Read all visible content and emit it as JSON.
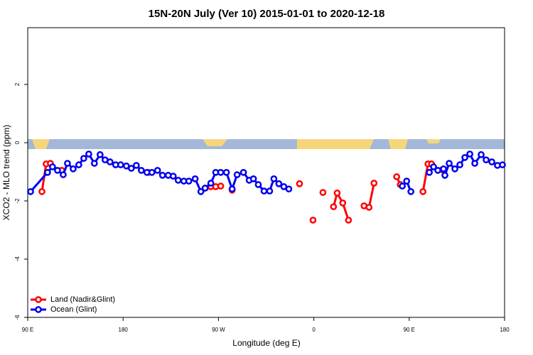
{
  "chart_data": {
    "type": "line",
    "title": "15N-20N July (Ver 10)   2015-01-01 to 2020-12-18",
    "x_label": "Longitude (deg E)",
    "y_label": "XCO2 - MLO trend (ppm)",
    "xlim": [
      90,
      540
    ],
    "ylim": [
      -6,
      3.95
    ],
    "xticks": [
      {
        "value": 90,
        "label": "90 E"
      },
      180,
      {
        "value": 270,
        "label": "90 W"
      },
      {
        "value": 360,
        "label": "0"
      },
      {
        "value": 450,
        "label": "90 E"
      },
      {
        "value": 540,
        "label": "180"
      }
    ],
    "yticks": [
      -6,
      -4,
      -2,
      0,
      2
    ],
    "legend": "bottom-left",
    "series": [
      {
        "name": "Land (Nadir&Glint)",
        "color": "#ff0000",
        "x": [
          103.4,
          107.4,
          111.4,
          null,
          122.1,
          null,
          203.8,
          null,
          257.4,
          262.8,
          267.4,
          272.1,
          null,
          282.9,
          null,
          346.5,
          null,
          359.2,
          null,
          368.6,
          null,
          378.6,
          382.0,
          387.3,
          392.7,
          null,
          407.4,
          412.1,
          416.8,
          null,
          438.2,
          441.6,
          null,
          463.0,
          467.7,
          471.1,
          null,
          481.1
        ],
        "values": [
          -1.68,
          -0.73,
          -0.71,
          null,
          -0.95,
          null,
          -1.02,
          null,
          -1.56,
          -1.51,
          -1.51,
          -1.49,
          null,
          -1.63,
          null,
          -1.41,
          null,
          -2.66,
          null,
          -1.71,
          null,
          -2.2,
          -1.73,
          -2.07,
          -2.66,
          null,
          -2.17,
          -2.22,
          -1.39,
          null,
          -1.17,
          -1.44,
          null,
          -1.68,
          -0.73,
          -0.73,
          null,
          -0.93
        ]
      },
      {
        "name": "Ocean (Glint)",
        "color": "#0000ee",
        "x": [
          92.7,
          108.7,
          113.4,
          118.1,
          123.5,
          127.5,
          132.9,
          138.2,
          142.9,
          147.6,
          152.9,
          158.3,
          163.0,
          167.7,
          173.0,
          177.7,
          183.1,
          187.8,
          192.5,
          197.2,
          202.5,
          207.2,
          212.5,
          217.2,
          222.6,
          227.3,
          232.0,
          237.3,
          242.0,
          248.0,
          253.4,
          257.4,
          262.8,
          267.4,
          272.1,
          277.5,
          282.9,
          287.6,
          293.6,
          299.0,
          303.0,
          307.6,
          313.0,
          318.3,
          322.3,
          327.0,
          331.7,
          336.4,
          null,
          443.5,
          447.6,
          451.6,
          null,
          469.0,
          473.0,
          477.0,
          482.4,
          483.7,
          487.7,
          493.1,
          497.8,
          502.5,
          507.2,
          511.9,
          517.9,
          522.6,
          528.0,
          533.3,
          538.0
        ],
        "values": [
          -1.68,
          -1.02,
          -0.83,
          -0.95,
          -1.1,
          -0.71,
          -0.9,
          -0.76,
          -0.54,
          -0.39,
          -0.71,
          -0.41,
          -0.59,
          -0.66,
          -0.76,
          -0.76,
          -0.8,
          -0.88,
          -0.78,
          -0.95,
          -1.02,
          -1.02,
          -0.95,
          -1.12,
          -1.12,
          -1.15,
          -1.29,
          -1.32,
          -1.32,
          -1.24,
          -1.68,
          -1.56,
          -1.39,
          -1.02,
          -1.02,
          -1.02,
          -1.59,
          -1.1,
          -1.02,
          -1.29,
          -1.24,
          -1.44,
          -1.66,
          -1.66,
          -1.24,
          -1.41,
          -1.51,
          -1.59,
          null,
          -1.49,
          -1.32,
          -1.68,
          null,
          -1.02,
          -0.83,
          -0.95,
          -0.9,
          -1.12,
          -0.71,
          -0.9,
          -0.76,
          -0.51,
          -0.39,
          -0.71,
          -0.41,
          -0.59,
          -0.66,
          -0.78,
          -0.76
        ]
      }
    ]
  }
}
